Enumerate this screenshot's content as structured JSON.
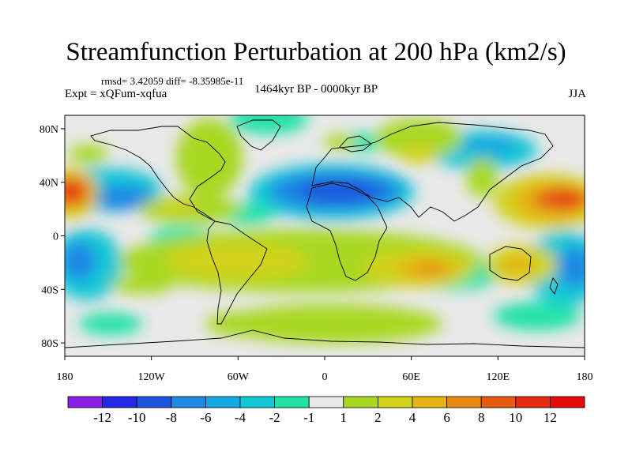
{
  "header": {
    "title": "Streamfunction Perturbation at 200 hPa (km2/s)",
    "stats": "rmsd= 3.42059 diff= -8.35985e-11",
    "experiment": "Expt = xQFum-xqfua",
    "period": "1464kyr BP - 0000kyr BP",
    "season": "JJA"
  },
  "axes": {
    "lat_labels": [
      "80N",
      "40N",
      "0",
      "40S",
      "80S"
    ],
    "lat_values": [
      80,
      40,
      0,
      -40,
      -80
    ],
    "lon_labels": [
      "180",
      "120W",
      "60W",
      "0",
      "60E",
      "120E",
      "180"
    ],
    "lon_values": [
      -180,
      -120,
      -60,
      0,
      60,
      120,
      180
    ]
  },
  "colorbar": {
    "labels": [
      "-12",
      "-10",
      "-8",
      "-6",
      "-4",
      "-2",
      "-1",
      "1",
      "2",
      "4",
      "6",
      "8",
      "10",
      "12"
    ],
    "colors": [
      "#8a1ee6",
      "#2626e6",
      "#1a55dd",
      "#1e88e5",
      "#12a8e2",
      "#12c8d6",
      "#20e2a8",
      "#e8e8e8",
      "#a8d820",
      "#d2d21a",
      "#e6b412",
      "#e68a12",
      "#e65a12",
      "#e62a12",
      "#e60a0a"
    ]
  },
  "colors": {
    "background": "#e8e8e8",
    "coastline": "#000000"
  }
}
